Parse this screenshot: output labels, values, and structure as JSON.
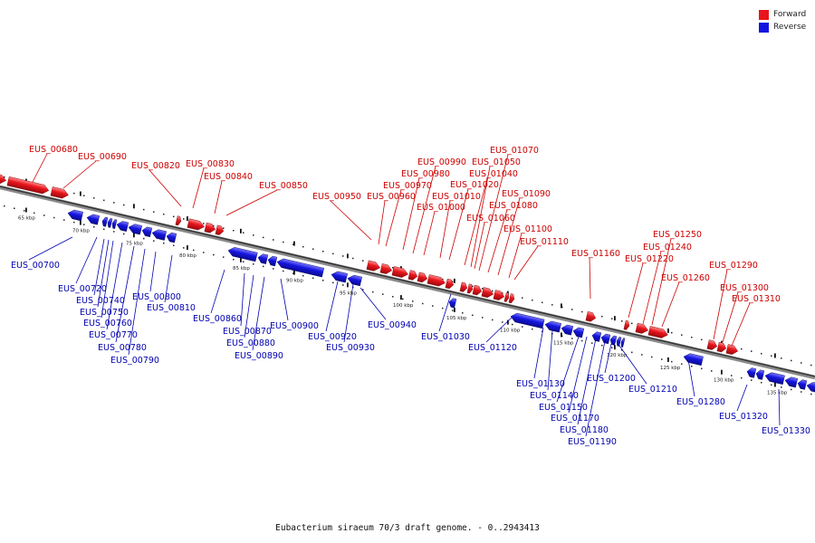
{
  "legend": {
    "forward_label": "Forward",
    "reverse_label": "Reverse",
    "forward_color": "#e8141b",
    "reverse_color": "#1515e0"
  },
  "caption": "Eubacterium siraeum 70/3 draft genome. - 0..2943413",
  "axis": {
    "ticks": [
      "65 kbp",
      "70 kbp",
      "75 kbp",
      "80 kbp",
      "85 kbp",
      "90 kbp",
      "95 kbp",
      "100 kbp",
      "105 kbp",
      "110 kbp",
      "115 kbp",
      "120 kbp",
      "125 kbp",
      "130 kbp",
      "135 kbp"
    ]
  },
  "forward_genes": [
    "EUS_00680",
    "EUS_00690",
    "EUS_00820",
    "EUS_00830",
    "EUS_00840",
    "EUS_00850",
    "EUS_00950",
    "EUS_00960",
    "EUS_00970",
    "EUS_00980",
    "EUS_00990",
    "EUS_01000",
    "EUS_01010",
    "EUS_01020",
    "EUS_01040",
    "EUS_01050",
    "EUS_01060",
    "EUS_01070",
    "EUS_01080",
    "EUS_01090",
    "EUS_01100",
    "EUS_01110",
    "EUS_01160",
    "EUS_01220",
    "EUS_01240",
    "EUS_01250",
    "EUS_01260",
    "EUS_01290",
    "EUS_01300",
    "EUS_01310"
  ],
  "reverse_genes": [
    "EUS_00700",
    "EUS_00720",
    "EUS_00740",
    "EUS_00750",
    "EUS_00760",
    "EUS_00770",
    "EUS_00780",
    "EUS_00790",
    "EUS_00800",
    "EUS_00810",
    "EUS_00860",
    "EUS_00870",
    "EUS_00880",
    "EUS_00890",
    "EUS_00900",
    "EUS_00920",
    "EUS_00930",
    "EUS_00940",
    "EUS_01030",
    "EUS_01120",
    "EUS_01130",
    "EUS_01140",
    "EUS_01150",
    "EUS_01170",
    "EUS_01180",
    "EUS_01190",
    "EUS_01200",
    "EUS_01210",
    "EUS_01280",
    "EUS_01320",
    "EUS_01330"
  ]
}
